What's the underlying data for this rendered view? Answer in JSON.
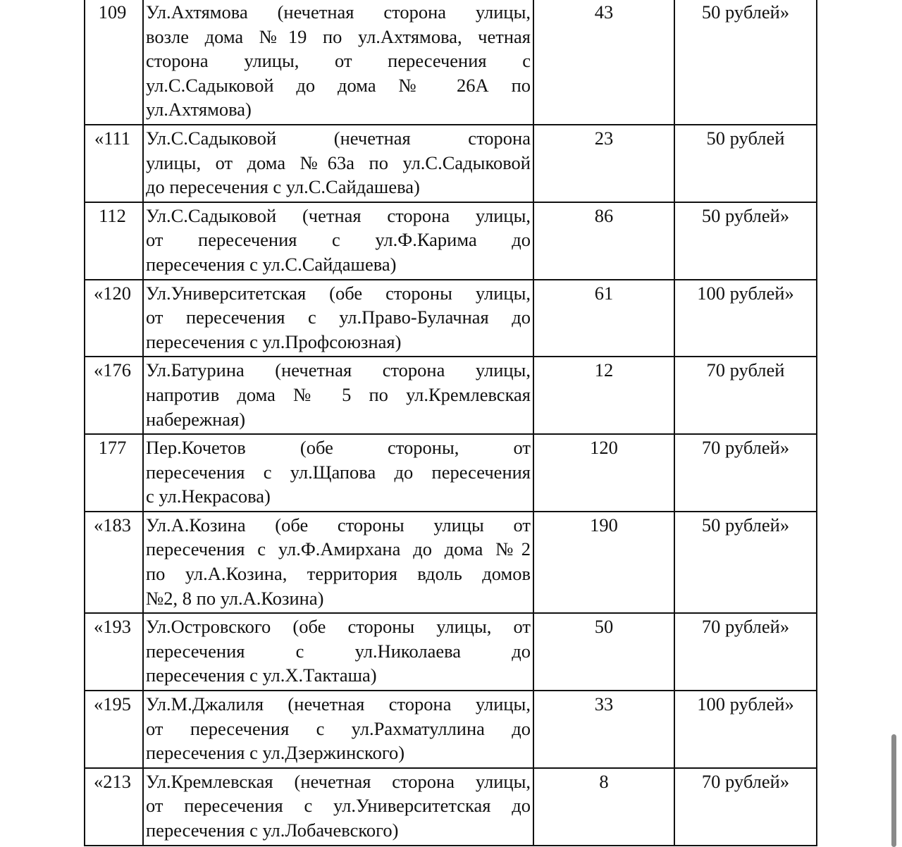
{
  "rows": [
    {
      "num": "109",
      "lines": [
        "Ул.Ахтямова (нечетная сторона улицы,",
        "возле дома №19 по ул.Ахтямова, четная",
        "сторона улицы, от пересечения с",
        "ул.С.Садыковой до дома № 26А по",
        "ул.Ахтямова)"
      ],
      "count": "43",
      "price": "50 рублей»"
    },
    {
      "num": "«111",
      "lines": [
        "Ул.С.Садыковой (нечетная сторона",
        "улицы, от дома №63а по ул.С.Садыковой",
        "до пересечения с ул.С.Сайдашева)"
      ],
      "count": "23",
      "price": "50 рублей"
    },
    {
      "num": "112",
      "lines": [
        "Ул.С.Садыковой (четная сторона улицы,",
        "от пересечения с ул.Ф.Карима до",
        "пересечения с ул.С.Сайдашева)"
      ],
      "count": "86",
      "price": "50 рублей»"
    },
    {
      "num": "«120",
      "lines": [
        "Ул.Университетская (обе стороны улицы,",
        "от пересечения с ул.Право-Булачная до",
        "пересечения с ул.Профсоюзная)"
      ],
      "count": "61",
      "price": "100 рублей»"
    },
    {
      "num": "«176",
      "lines": [
        "Ул.Батурина (нечетная сторона улицы,",
        "напротив дома № 5 по ул.Кремлевская",
        "набережная)"
      ],
      "count": "12",
      "price": "70 рублей"
    },
    {
      "num": "177",
      "lines": [
        "Пер.Кочетов (обе стороны, от",
        "пересечения с ул.Щапова до пересечения",
        "с ул.Некрасова)"
      ],
      "count": "120",
      "price": "70 рублей»"
    },
    {
      "num": "«183",
      "lines": [
        "Ул.А.Козина (обе стороны улицы от",
        "пересечения с ул.Ф.Амирхана до дома №2",
        "по ул.А.Козина, территория вдоль домов",
        "№2, 8 по ул.А.Козина)"
      ],
      "count": "190",
      "price": "50 рублей»"
    },
    {
      "num": "«193",
      "lines": [
        "Ул.Островского (обе стороны улицы, от",
        "пересечения с ул.Николаева до",
        "пересечения с ул.Х.Такташа)"
      ],
      "count": "50",
      "price": "70 рублей»"
    },
    {
      "num": "«195",
      "lines": [
        "Ул.М.Джалиля (нечетная сторона улицы,",
        "от пересечения с ул.Рахматуллина до",
        "пересечения с ул.Дзержинского)"
      ],
      "count": "33",
      "price": "100 рублей»"
    },
    {
      "num": "«213",
      "lines": [
        "Ул.Кремлевская (нечетная сторона улицы,",
        "от пересечения с ул.Университетская до",
        "пересечения с ул.Лобачевского)"
      ],
      "count": "8",
      "price": "70 рублей»"
    }
  ],
  "scrollbar_color": "#8a8a8a"
}
